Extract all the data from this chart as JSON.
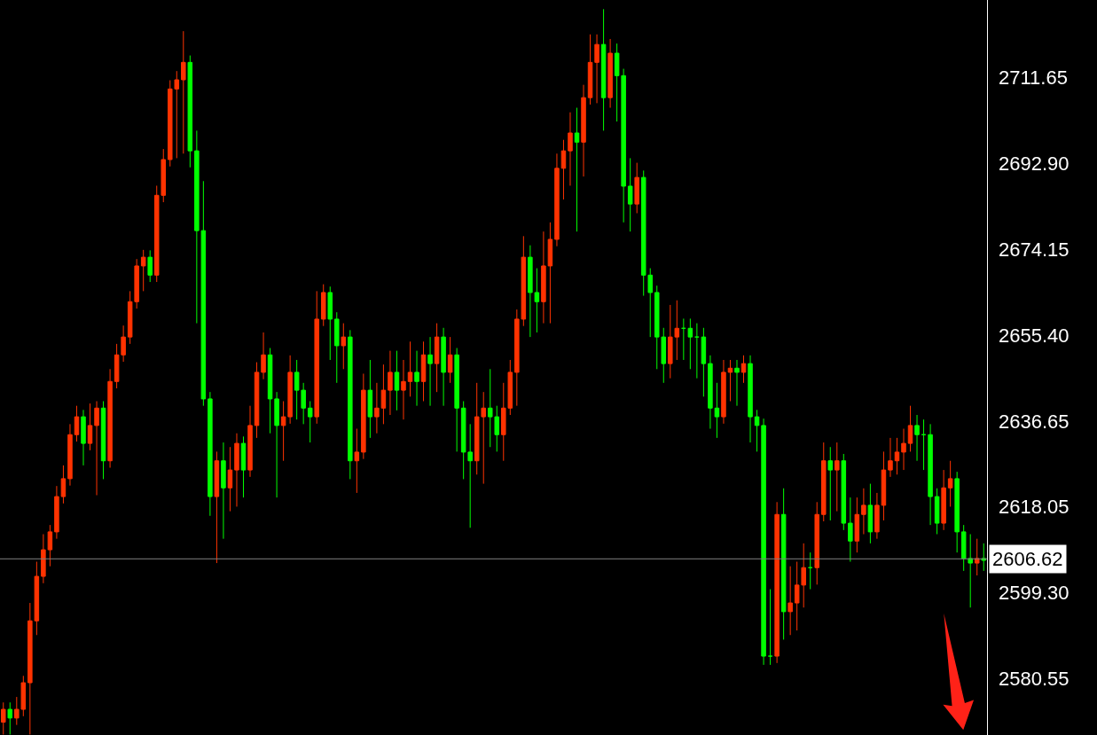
{
  "chart_data": {
    "type": "candlestick",
    "categories": [
      null,
      null,
      null,
      null,
      null,
      null,
      null,
      null,
      null,
      null,
      null,
      null,
      null,
      null,
      null,
      null,
      null,
      null,
      null,
      null,
      null,
      null,
      null,
      null,
      null,
      null,
      null,
      null,
      null,
      null,
      null,
      null,
      null,
      null,
      null,
      null,
      null,
      null,
      null,
      null,
      null,
      null,
      null,
      null,
      null,
      null,
      null,
      null,
      null,
      null,
      null,
      null,
      null,
      null,
      null,
      null,
      null,
      null,
      null,
      null,
      null,
      null,
      null,
      null,
      null,
      null,
      null,
      null,
      null,
      null,
      null,
      null,
      null,
      null,
      null,
      null,
      null,
      null,
      null,
      null,
      null,
      null,
      null,
      null,
      null,
      null,
      null,
      null,
      null,
      null,
      null,
      null,
      null,
      null,
      null,
      null,
      null,
      null,
      null,
      null,
      null,
      null,
      null,
      null,
      null,
      null,
      null,
      null,
      null,
      null,
      null,
      null,
      null,
      null,
      null,
      null,
      null,
      null,
      null,
      null,
      null,
      null,
      null,
      null,
      null,
      null,
      null,
      null,
      null,
      null,
      null,
      null,
      null,
      null,
      null,
      null,
      null,
      null,
      null,
      null,
      null,
      null,
      null,
      null,
      null,
      null,
      null,
      null
    ],
    "ohlc": [
      [
        2571.0,
        2575.3,
        2568.3,
        2573.8
      ],
      [
        2573.8,
        2575.3,
        2568.3,
        2571.9
      ],
      [
        2571.9,
        2576.5,
        2570.4,
        2573.8
      ],
      [
        2573.8,
        2581.1,
        2572.3,
        2579.6
      ],
      [
        2579.6,
        2597.0,
        2568.3,
        2593.1
      ],
      [
        2593.1,
        2606.0,
        2590.0,
        2602.8
      ],
      [
        2602.8,
        2612.0,
        2601.3,
        2608.6
      ],
      [
        2608.6,
        2614.0,
        2605.0,
        2612.5
      ],
      [
        2612.5,
        2622.5,
        2611.0,
        2620.2
      ],
      [
        2620.2,
        2627.0,
        2618.7,
        2624.1
      ],
      [
        2624.1,
        2636.0,
        2622.6,
        2633.7
      ],
      [
        2633.7,
        2640.0,
        2632.2,
        2637.6
      ],
      [
        2637.6,
        2639.1,
        2627.0,
        2631.8
      ],
      [
        2631.8,
        2640.5,
        2630.3,
        2635.7
      ],
      [
        2635.7,
        2641.0,
        2620.5,
        2639.5
      ],
      [
        2639.5,
        2641.0,
        2624.0,
        2628.0
      ],
      [
        2628.0,
        2648.0,
        2626.5,
        2645.3
      ],
      [
        2645.3,
        2653.5,
        2643.8,
        2651.1
      ],
      [
        2651.1,
        2657.5,
        2649.6,
        2655.0
      ],
      [
        2655.0,
        2665.0,
        2653.5,
        2662.7
      ],
      [
        2662.7,
        2672.0,
        2661.2,
        2670.5
      ],
      [
        2670.5,
        2674.0,
        2665.0,
        2672.4
      ],
      [
        2672.4,
        2673.9,
        2667.0,
        2668.5
      ],
      [
        2668.5,
        2688.0,
        2667.0,
        2685.9
      ],
      [
        2685.9,
        2696.0,
        2684.4,
        2693.7
      ],
      [
        2693.7,
        2711.0,
        2692.2,
        2709.1
      ],
      [
        2709.1,
        2713.0,
        2694.0,
        2711.1
      ],
      [
        2711.1,
        2721.7,
        2695.0,
        2714.9
      ],
      [
        2714.9,
        2716.4,
        2692.0,
        2695.6
      ],
      [
        2695.6,
        2700.0,
        2658.0,
        2678.2
      ],
      [
        2678.2,
        2689.0,
        2640.0,
        2641.5
      ],
      [
        2641.5,
        2643.0,
        2616.0,
        2620.2
      ],
      [
        2620.2,
        2630.0,
        2605.7,
        2628.0
      ],
      [
        2628.0,
        2632.0,
        2611.0,
        2622.1
      ],
      [
        2622.1,
        2631.0,
        2617.0,
        2626.0
      ],
      [
        2626.0,
        2634.0,
        2618.0,
        2631.8
      ],
      [
        2631.8,
        2633.3,
        2620.0,
        2626.0
      ],
      [
        2626.0,
        2640.0,
        2624.5,
        2635.7
      ],
      [
        2635.7,
        2649.5,
        2633.0,
        2647.3
      ],
      [
        2647.3,
        2656.0,
        2645.8,
        2651.1
      ],
      [
        2651.1,
        2652.6,
        2634.0,
        2641.5
      ],
      [
        2641.5,
        2643.0,
        2620.0,
        2635.7
      ],
      [
        2635.7,
        2641.0,
        2628.0,
        2637.6
      ],
      [
        2637.6,
        2651.0,
        2636.1,
        2647.3
      ],
      [
        2647.3,
        2650.0,
        2637.0,
        2643.4
      ],
      [
        2643.4,
        2645.0,
        2636.0,
        2639.5
      ],
      [
        2639.5,
        2641.0,
        2632.0,
        2637.6
      ],
      [
        2637.6,
        2665.0,
        2636.1,
        2658.9
      ],
      [
        2658.9,
        2666.5,
        2657.4,
        2664.7
      ],
      [
        2664.7,
        2666.0,
        2650.0,
        2658.9
      ],
      [
        2658.9,
        2660.4,
        2645.0,
        2653.1
      ],
      [
        2653.1,
        2658.0,
        2648.0,
        2655.0
      ],
      [
        2655.0,
        2656.5,
        2624.0,
        2628.0
      ],
      [
        2628.0,
        2635.0,
        2621.0,
        2629.9
      ],
      [
        2629.9,
        2647.0,
        2628.4,
        2643.4
      ],
      [
        2643.4,
        2650.0,
        2633.0,
        2637.6
      ],
      [
        2637.6,
        2645.0,
        2634.0,
        2639.5
      ],
      [
        2639.5,
        2649.0,
        2636.0,
        2643.4
      ],
      [
        2643.4,
        2652.0,
        2638.0,
        2647.3
      ],
      [
        2647.3,
        2652.0,
        2639.0,
        2643.4
      ],
      [
        2643.4,
        2650.0,
        2637.0,
        2645.3
      ],
      [
        2645.3,
        2654.0,
        2642.0,
        2647.3
      ],
      [
        2647.3,
        2652.0,
        2640.0,
        2645.3
      ],
      [
        2645.3,
        2654.0,
        2641.0,
        2651.1
      ],
      [
        2651.1,
        2655.0,
        2640.0,
        2649.2
      ],
      [
        2649.2,
        2658.0,
        2643.0,
        2655.0
      ],
      [
        2655.0,
        2657.0,
        2640.0,
        2647.3
      ],
      [
        2647.3,
        2655.0,
        2645.0,
        2651.1
      ],
      [
        2651.1,
        2652.6,
        2630.0,
        2639.5
      ],
      [
        2639.5,
        2641.0,
        2624.0,
        2629.9
      ],
      [
        2629.9,
        2636.0,
        2613.4,
        2628.0
      ],
      [
        2628.0,
        2645.0,
        2625.0,
        2637.6
      ],
      [
        2637.6,
        2643.0,
        2623.0,
        2639.5
      ],
      [
        2639.5,
        2648.0,
        2631.0,
        2637.6
      ],
      [
        2637.6,
        2640.0,
        2630.0,
        2633.7
      ],
      [
        2633.7,
        2645.0,
        2628.0,
        2639.5
      ],
      [
        2639.5,
        2650.0,
        2638.0,
        2647.3
      ],
      [
        2647.3,
        2661.0,
        2640.0,
        2658.9
      ],
      [
        2658.9,
        2677.0,
        2657.4,
        2672.4
      ],
      [
        2672.4,
        2675.0,
        2655.0,
        2664.7
      ],
      [
        2664.7,
        2670.0,
        2656.0,
        2662.7
      ],
      [
        2662.7,
        2678.0,
        2658.0,
        2670.5
      ],
      [
        2670.5,
        2680.0,
        2658.0,
        2676.3
      ],
      [
        2676.3,
        2695.0,
        2674.8,
        2691.8
      ],
      [
        2691.8,
        2698.0,
        2685.0,
        2695.6
      ],
      [
        2695.6,
        2704.0,
        2688.0,
        2699.5
      ],
      [
        2699.5,
        2705.0,
        2678.0,
        2697.5
      ],
      [
        2697.5,
        2710.0,
        2690.0,
        2707.2
      ],
      [
        2707.2,
        2721.0,
        2705.7,
        2714.9
      ],
      [
        2714.9,
        2721.0,
        2706.0,
        2718.8
      ],
      [
        2718.8,
        2726.5,
        2700.0,
        2707.2
      ],
      [
        2707.2,
        2720.0,
        2705.0,
        2716.9
      ],
      [
        2716.9,
        2719.0,
        2702.0,
        2712.0
      ],
      [
        2712.0,
        2713.5,
        2680.0,
        2687.9
      ],
      [
        2687.9,
        2694.0,
        2678.0,
        2684.0
      ],
      [
        2684.0,
        2693.0,
        2682.0,
        2689.8
      ],
      [
        2689.8,
        2691.3,
        2664.0,
        2668.5
      ],
      [
        2668.5,
        2670.0,
        2655.0,
        2664.7
      ],
      [
        2664.7,
        2666.2,
        2648.0,
        2655.0
      ],
      [
        2655.0,
        2657.0,
        2645.0,
        2649.2
      ],
      [
        2649.2,
        2662.0,
        2646.0,
        2655.0
      ],
      [
        2655.0,
        2663.0,
        2650.0,
        2656.9
      ],
      [
        2656.9,
        2659.0,
        2650.0,
        2656.9
      ],
      [
        2656.9,
        2659.0,
        2648.0,
        2655.0
      ],
      [
        2655.0,
        2658.0,
        2646.0,
        2655.0
      ],
      [
        2655.0,
        2657.0,
        2642.0,
        2649.2
      ],
      [
        2649.2,
        2651.0,
        2635.0,
        2639.5
      ],
      [
        2639.5,
        2645.0,
        2633.0,
        2637.6
      ],
      [
        2637.6,
        2650.0,
        2636.1,
        2647.3
      ],
      [
        2647.3,
        2650.0,
        2641.0,
        2648.2
      ],
      [
        2648.2,
        2650.0,
        2640.0,
        2647.3
      ],
      [
        2647.3,
        2651.0,
        2645.0,
        2649.2
      ],
      [
        2649.2,
        2651.0,
        2632.0,
        2637.6
      ],
      [
        2637.6,
        2639.1,
        2630.0,
        2635.7
      ],
      [
        2635.7,
        2637.2,
        2583.5,
        2585.4
      ],
      [
        2585.4,
        2600.0,
        2583.5,
        2585.4
      ],
      [
        2585.4,
        2619.0,
        2583.9,
        2616.3
      ],
      [
        2616.3,
        2622.0,
        2589.0,
        2595.1
      ],
      [
        2595.1,
        2605.0,
        2590.0,
        2597.0
      ],
      [
        2597.0,
        2606.0,
        2591.0,
        2600.9
      ],
      [
        2600.9,
        2610.0,
        2596.0,
        2604.7
      ],
      [
        2604.7,
        2608.0,
        2600.0,
        2604.7
      ],
      [
        2604.7,
        2619.0,
        2601.0,
        2616.3
      ],
      [
        2616.3,
        2632.0,
        2614.8,
        2628.0
      ],
      [
        2628.0,
        2631.0,
        2615.0,
        2626.0
      ],
      [
        2626.0,
        2632.0,
        2617.0,
        2628.0
      ],
      [
        2628.0,
        2629.5,
        2612.9,
        2614.4
      ],
      [
        2614.4,
        2620.0,
        2606.0,
        2610.5
      ],
      [
        2610.5,
        2620.0,
        2608.0,
        2616.3
      ],
      [
        2616.3,
        2622.0,
        2612.0,
        2618.3
      ],
      [
        2618.3,
        2623.0,
        2610.0,
        2612.5
      ],
      [
        2612.5,
        2621.0,
        2611.0,
        2618.3
      ],
      [
        2618.3,
        2630.0,
        2615.0,
        2626.0
      ],
      [
        2626.0,
        2633.0,
        2624.5,
        2628.0
      ],
      [
        2628.0,
        2633.0,
        2625.0,
        2629.9
      ],
      [
        2629.9,
        2635.0,
        2626.0,
        2631.8
      ],
      [
        2631.8,
        2640.0,
        2630.0,
        2635.7
      ],
      [
        2635.7,
        2638.0,
        2628.0,
        2633.7
      ],
      [
        2633.7,
        2637.0,
        2626.0,
        2633.7
      ],
      [
        2633.7,
        2636.0,
        2614.0,
        2620.2
      ],
      [
        2620.2,
        2622.0,
        2612.0,
        2614.4
      ],
      [
        2614.4,
        2626.0,
        2612.9,
        2622.1
      ],
      [
        2622.1,
        2628.0,
        2618.0,
        2624.1
      ],
      [
        2624.1,
        2625.6,
        2608.0,
        2612.5
      ],
      [
        2612.5,
        2614.0,
        2604.0,
        2606.7
      ],
      [
        2606.7,
        2612.0,
        2596.0,
        2605.7
      ],
      [
        2605.7,
        2611.0,
        2603.0,
        2606.7
      ],
      [
        2606.7,
        2610.0,
        2604.0,
        2606.3
      ]
    ],
    "colors": [
      "#ff3300",
      "#00ff00",
      "#ff3300",
      "#ff3300",
      "#ff3300",
      "#ff3300",
      "#ff3300",
      "#ff3300",
      "#ff3300",
      "#ff3300",
      "#ff3300",
      "#ff3300",
      "#00ff00",
      "#ff3300",
      "#ff3300",
      "#00ff00",
      "#ff3300",
      "#ff3300",
      "#ff3300",
      "#ff3300",
      "#ff3300",
      "#ff3300",
      "#00ff00",
      "#ff3300",
      "#ff3300",
      "#ff3300",
      "#ff3300",
      "#ff3300",
      "#00ff00",
      "#00ff00",
      "#00ff00",
      "#00ff00",
      "#ff3300",
      "#00ff00",
      "#ff3300",
      "#ff3300",
      "#00ff00",
      "#ff3300",
      "#ff3300",
      "#ff3300",
      "#00ff00",
      "#00ff00",
      "#ff3300",
      "#ff3300",
      "#00ff00",
      "#00ff00",
      "#00ff00",
      "#ff3300",
      "#ff3300",
      "#00ff00",
      "#00ff00",
      "#ff3300",
      "#00ff00",
      "#ff3300",
      "#ff3300",
      "#00ff00",
      "#ff3300",
      "#ff3300",
      "#ff3300",
      "#00ff00",
      "#ff3300",
      "#ff3300",
      "#00ff00",
      "#ff3300",
      "#00ff00",
      "#ff3300",
      "#00ff00",
      "#ff3300",
      "#00ff00",
      "#00ff00",
      "#00ff00",
      "#ff3300",
      "#ff3300",
      "#00ff00",
      "#00ff00",
      "#ff3300",
      "#ff3300",
      "#ff3300",
      "#ff3300",
      "#00ff00",
      "#00ff00",
      "#ff3300",
      "#ff3300",
      "#ff3300",
      "#ff3300",
      "#ff3300",
      "#00ff00",
      "#ff3300",
      "#ff3300",
      "#ff3300",
      "#00ff00",
      "#ff3300",
      "#00ff00",
      "#00ff00",
      "#00ff00",
      "#ff3300",
      "#00ff00",
      "#00ff00",
      "#00ff00",
      "#00ff00",
      "#ff3300",
      "#ff3300",
      "#00ff00",
      "#00ff00",
      "#00ff00",
      "#00ff00",
      "#00ff00",
      "#00ff00",
      "#ff3300",
      "#ff3300",
      "#00ff00",
      "#ff3300",
      "#00ff00",
      "#00ff00",
      "#00ff00",
      "#00ff00",
      "#ff3300",
      "#00ff00",
      "#ff3300",
      "#ff3300",
      "#ff3300",
      "#00ff00",
      "#ff3300",
      "#ff3300",
      "#00ff00",
      "#ff3300",
      "#00ff00",
      "#00ff00",
      "#ff3300",
      "#ff3300",
      "#00ff00",
      "#ff3300",
      "#ff3300",
      "#ff3300",
      "#ff3300",
      "#ff3300",
      "#ff3300",
      "#00ff00",
      "#00ff00",
      "#00ff00",
      "#00ff00",
      "#ff3300",
      "#ff3300",
      "#00ff00",
      "#00ff00",
      "#00ff00",
      "#ff3300",
      "#00ff00"
    ],
    "ylim": [
      2568.2,
      2728.5
    ],
    "yticks": [
      {
        "value": 2580.55,
        "label": "2580.55"
      },
      {
        "value": 2599.3,
        "label": "2599.30"
      },
      {
        "value": 2618.05,
        "label": "2618.05"
      },
      {
        "value": 2636.65,
        "label": "2636.65"
      },
      {
        "value": 2655.4,
        "label": "2655.40"
      },
      {
        "value": 2674.15,
        "label": "2674.15"
      },
      {
        "value": 2692.9,
        "label": "2692.90"
      },
      {
        "value": 2711.65,
        "label": "2711.65"
      }
    ],
    "ref_lines": [
      {
        "axis": "y",
        "value": 2606.62,
        "label": "2606.62",
        "color": "#808080"
      }
    ],
    "tick_labels": "y"
  }
}
